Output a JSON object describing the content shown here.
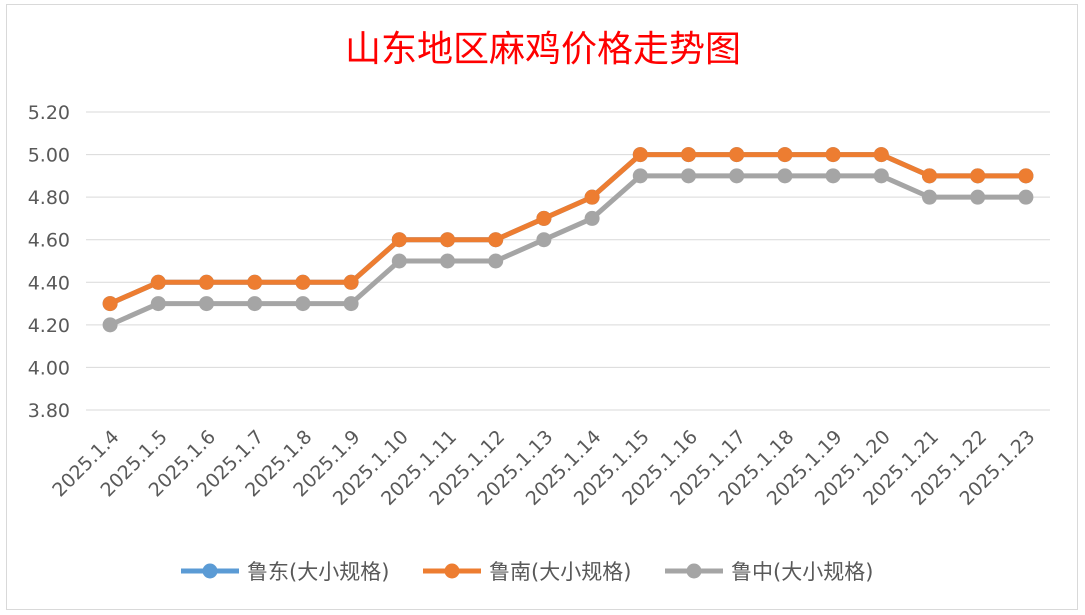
{
  "chart_data": {
    "type": "line",
    "title": "山东地区麻鸡价格走势图",
    "xlabel": "",
    "ylabel": "",
    "categories": [
      "2025.1.4",
      "2025.1.5",
      "2025.1.6",
      "2025.1.7",
      "2025.1.8",
      "2025.1.9",
      "2025.1.10",
      "2025.1.11",
      "2025.1.12",
      "2025.1.13",
      "2025.1.14",
      "2025.1.15",
      "2025.1.16",
      "2025.1.17",
      "2025.1.18",
      "2025.1.19",
      "2025.1.20",
      "2025.1.21",
      "2025.1.22",
      "2025.1.23"
    ],
    "ylim": [
      3.8,
      5.2
    ],
    "yticks": [
      "3.80",
      "4.00",
      "4.20",
      "4.40",
      "4.60",
      "4.80",
      "5.00",
      "5.20"
    ],
    "grid": true,
    "legend_position": "bottom",
    "series": [
      {
        "name": "鲁东(大小规格)",
        "color": "#5b9bd5",
        "values": [
          4.3,
          4.4,
          4.4,
          4.4,
          4.4,
          4.4,
          4.6,
          4.6,
          4.6,
          4.7,
          4.8,
          5.0,
          5.0,
          5.0,
          5.0,
          5.0,
          5.0,
          4.9,
          4.9,
          4.9
        ]
      },
      {
        "name": "鲁南(大小规格)",
        "color": "#ed7d31",
        "values": [
          4.3,
          4.4,
          4.4,
          4.4,
          4.4,
          4.4,
          4.6,
          4.6,
          4.6,
          4.7,
          4.8,
          5.0,
          5.0,
          5.0,
          5.0,
          5.0,
          5.0,
          4.9,
          4.9,
          4.9
        ]
      },
      {
        "name": "鲁中(大小规格)",
        "color": "#a5a5a5",
        "values": [
          4.2,
          4.3,
          4.3,
          4.3,
          4.3,
          4.3,
          4.5,
          4.5,
          4.5,
          4.6,
          4.7,
          4.9,
          4.9,
          4.9,
          4.9,
          4.9,
          4.9,
          4.8,
          4.8,
          4.8
        ]
      }
    ]
  }
}
